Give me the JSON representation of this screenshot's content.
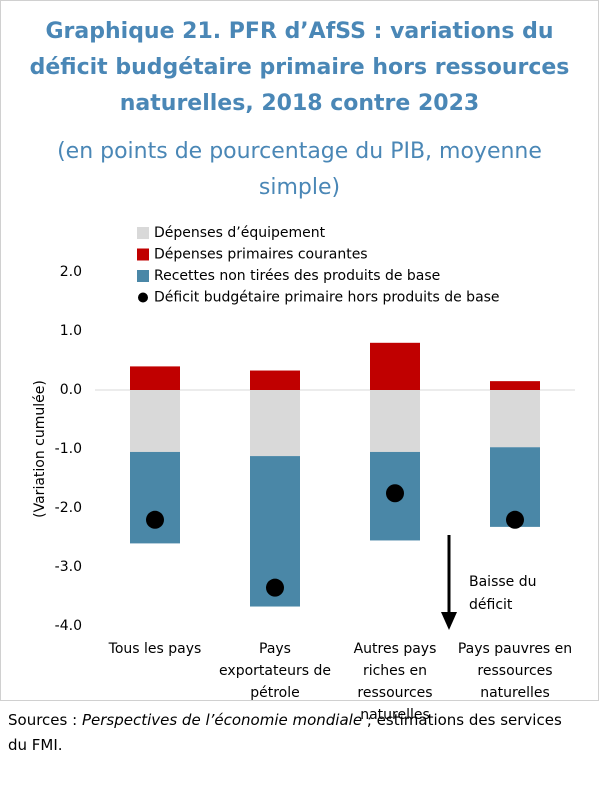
{
  "chart_data": {
    "type": "stacked_bar",
    "title": "Graphique 21. PFR d’AfSS : variations du déficit budgétaire primaire hors ressources naturelles, 2018 contre 2023",
    "subtitle": "(en points de pourcentage du PIB, moyenne simple)",
    "y_label": "(Variation cumulée)",
    "categories": [
      "Tous les pays",
      "Pays exportateurs de pétrole",
      "Autres pays riches en ressources naturelles",
      "Pays pauvres en ressources naturelles"
    ],
    "series": [
      {
        "name": "Dépenses d’équipement",
        "color": "#d9d9d9",
        "values": [
          -1.05,
          -1.12,
          -1.05,
          -0.97
        ]
      },
      {
        "name": "Dépenses primaires courantes",
        "color": "#c00000",
        "values": [
          0.4,
          0.33,
          0.8,
          0.15
        ]
      },
      {
        "name": "Recettes non tirées des produits de base",
        "color": "#4a87a7",
        "values": [
          -1.55,
          -2.55,
          -1.5,
          -1.35
        ]
      },
      {
        "name": "Déficit budgétaire primaire hors produits de base",
        "color": "#000000",
        "type": "scatter",
        "values": [
          -2.2,
          -3.35,
          -1.75,
          -2.2
        ]
      }
    ],
    "ylim": [
      -4.0,
      2.0
    ],
    "yticks": [
      {
        "value": 2,
        "label": "2.0"
      },
      {
        "value": 1,
        "label": "1.0"
      },
      {
        "value": 0,
        "label": "0.0"
      },
      {
        "value": -1,
        "label": "-1.0"
      },
      {
        "value": -2,
        "label": "-2.0"
      },
      {
        "value": -3,
        "label": "-3.0"
      },
      {
        "value": -4,
        "label": "-4.0"
      }
    ],
    "annotation": [
      "Baisse du",
      "déficit"
    ],
    "source": [
      "Sources : ",
      "Perspectives de l’économie mondiale",
      " ; estimations des services du FMI."
    ]
  }
}
